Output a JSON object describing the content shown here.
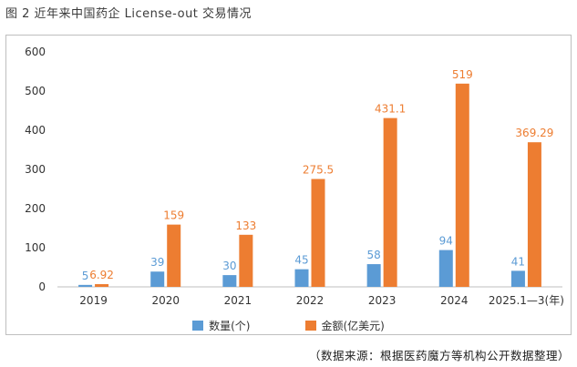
{
  "figure": {
    "title": "图 2   近年来中国药企 License-out 交易情况",
    "source": "（数据来源：根据医药魔方等机构公开数据整理）"
  },
  "colors": {
    "count": "#5b9bd5",
    "amount": "#ed7d31",
    "axis": "#bfbfbf",
    "grid": "#e6e6e6"
  },
  "chart_data": {
    "type": "bar",
    "categories": [
      "2019",
      "2020",
      "2021",
      "2022",
      "2023",
      "2024",
      "2025.1—3(年)"
    ],
    "series": [
      {
        "name": "数量(个)",
        "values": [
          5,
          39,
          30,
          45,
          58,
          94,
          41
        ],
        "labels": [
          "5",
          "39",
          "30",
          "45",
          "58",
          "94",
          "41"
        ]
      },
      {
        "name": "金额(亿美元)",
        "values": [
          6.92,
          159,
          133,
          275.5,
          431.1,
          519,
          369.29
        ],
        "labels": [
          "6.92",
          "159",
          "133",
          "275.5",
          "431.1",
          "519",
          "369.29"
        ]
      }
    ],
    "ylim": [
      0,
      600
    ],
    "yticks": [
      0,
      100,
      200,
      300,
      400,
      500,
      600
    ],
    "grid": false,
    "legend": "bottom-center"
  }
}
